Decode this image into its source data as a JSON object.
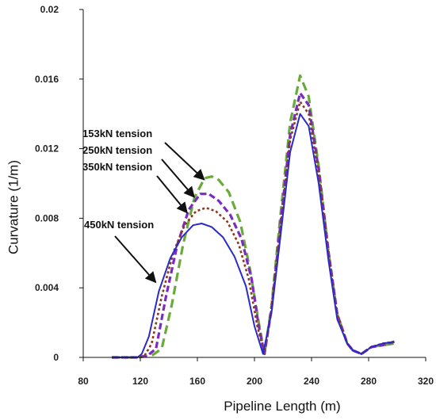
{
  "chart_data": {
    "type": "line",
    "title": "",
    "xlabel": "Pipeline Length (m)",
    "ylabel": "Curvature (1/m)",
    "xlim": [
      80,
      320
    ],
    "ylim": [
      0,
      0.02
    ],
    "x_ticks": [
      "80",
      "120",
      "160",
      "200",
      "240",
      "280",
      "320"
    ],
    "y_ticks": [
      "0",
      "0.004",
      "0.008",
      "0.012",
      "0.016",
      "0.02"
    ],
    "grid": false,
    "legend": "none",
    "series": [
      {
        "name": "153kN tension",
        "color": "#6aaa3a",
        "dash": "long-dash",
        "points": [
          [
            100,
            0
          ],
          [
            118,
            0
          ],
          [
            128,
            0.0001
          ],
          [
            135,
            0.0005
          ],
          [
            142,
            0.003
          ],
          [
            150,
            0.0065
          ],
          [
            158,
            0.0092
          ],
          [
            165,
            0.0103
          ],
          [
            170,
            0.0104
          ],
          [
            175,
            0.0102
          ],
          [
            182,
            0.0095
          ],
          [
            190,
            0.0078
          ],
          [
            197,
            0.005
          ],
          [
            203,
            0.002
          ],
          [
            207,
            0.0002
          ],
          [
            212,
            0.003
          ],
          [
            218,
            0.008
          ],
          [
            225,
            0.0135
          ],
          [
            232,
            0.0162
          ],
          [
            238,
            0.015
          ],
          [
            245,
            0.011
          ],
          [
            252,
            0.006
          ],
          [
            258,
            0.0025
          ],
          [
            265,
            0.0008
          ],
          [
            269,
            0.0004
          ],
          [
            275,
            0.0002
          ],
          [
            282,
            0.0006
          ],
          [
            290,
            0.0007
          ],
          [
            298,
            0.0008
          ]
        ]
      },
      {
        "name": "250kN tension",
        "color": "#7a2cc0",
        "dash": "dash",
        "points": [
          [
            100,
            0
          ],
          [
            118,
            0
          ],
          [
            125,
            0.0001
          ],
          [
            131,
            0.0005
          ],
          [
            138,
            0.0035
          ],
          [
            146,
            0.0065
          ],
          [
            154,
            0.0085
          ],
          [
            162,
            0.0094
          ],
          [
            168,
            0.0094
          ],
          [
            175,
            0.009
          ],
          [
            183,
            0.0082
          ],
          [
            191,
            0.0068
          ],
          [
            198,
            0.0045
          ],
          [
            203,
            0.0018
          ],
          [
            207,
            0.0002
          ],
          [
            212,
            0.0028
          ],
          [
            218,
            0.0075
          ],
          [
            225,
            0.0128
          ],
          [
            232,
            0.0152
          ],
          [
            238,
            0.0145
          ],
          [
            245,
            0.0108
          ],
          [
            252,
            0.006
          ],
          [
            258,
            0.0025
          ],
          [
            265,
            0.0008
          ],
          [
            269,
            0.0004
          ],
          [
            275,
            0.0002
          ],
          [
            282,
            0.0006
          ],
          [
            290,
            0.0007
          ],
          [
            298,
            0.0009
          ]
        ]
      },
      {
        "name": "350kN tension",
        "color": "#8b3a1a",
        "dash": "dot",
        "points": [
          [
            100,
            0
          ],
          [
            118,
            0
          ],
          [
            123,
            0.0001
          ],
          [
            128,
            0.0008
          ],
          [
            135,
            0.0035
          ],
          [
            143,
            0.006
          ],
          [
            151,
            0.0076
          ],
          [
            159,
            0.0084
          ],
          [
            166,
            0.0086
          ],
          [
            173,
            0.0084
          ],
          [
            181,
            0.0078
          ],
          [
            189,
            0.0065
          ],
          [
            196,
            0.0045
          ],
          [
            202,
            0.0018
          ],
          [
            207,
            0.0002
          ],
          [
            212,
            0.0028
          ],
          [
            218,
            0.0072
          ],
          [
            225,
            0.0125
          ],
          [
            232,
            0.0147
          ],
          [
            238,
            0.014
          ],
          [
            245,
            0.0105
          ],
          [
            252,
            0.0058
          ],
          [
            258,
            0.0024
          ],
          [
            265,
            0.0008
          ],
          [
            269,
            0.0004
          ],
          [
            275,
            0.0002
          ],
          [
            282,
            0.0006
          ],
          [
            290,
            0.0008
          ],
          [
            298,
            0.0009
          ]
        ]
      },
      {
        "name": "450kN tension",
        "color": "#2a2ac8",
        "dash": "solid",
        "points": [
          [
            100,
            0
          ],
          [
            118,
            0
          ],
          [
            121,
            0.0002
          ],
          [
            126,
            0.0012
          ],
          [
            133,
            0.0038
          ],
          [
            141,
            0.0057
          ],
          [
            149,
            0.0069
          ],
          [
            157,
            0.0076
          ],
          [
            163,
            0.0077
          ],
          [
            170,
            0.0075
          ],
          [
            178,
            0.0069
          ],
          [
            186,
            0.0058
          ],
          [
            194,
            0.0041
          ],
          [
            200,
            0.0018
          ],
          [
            206,
            0.0002
          ],
          [
            212,
            0.0026
          ],
          [
            218,
            0.0068
          ],
          [
            225,
            0.0118
          ],
          [
            232,
            0.014
          ],
          [
            238,
            0.0133
          ],
          [
            245,
            0.01
          ],
          [
            252,
            0.0055
          ],
          [
            258,
            0.0022
          ],
          [
            265,
            0.0008
          ],
          [
            269,
            0.0004
          ],
          [
            275,
            0.0002
          ],
          [
            282,
            0.0006
          ],
          [
            290,
            0.0008
          ],
          [
            298,
            0.0009
          ]
        ]
      }
    ],
    "annotations": [
      {
        "text": "153kN tension",
        "target": [
          167,
          0.0104
        ]
      },
      {
        "text": "250kN tension",
        "target": [
          160,
          0.0094
        ]
      },
      {
        "text": "350kN tension",
        "target": [
          155,
          0.0085
        ]
      },
      {
        "text": "450kN tension",
        "target": [
          133,
          0.0045
        ]
      }
    ]
  }
}
